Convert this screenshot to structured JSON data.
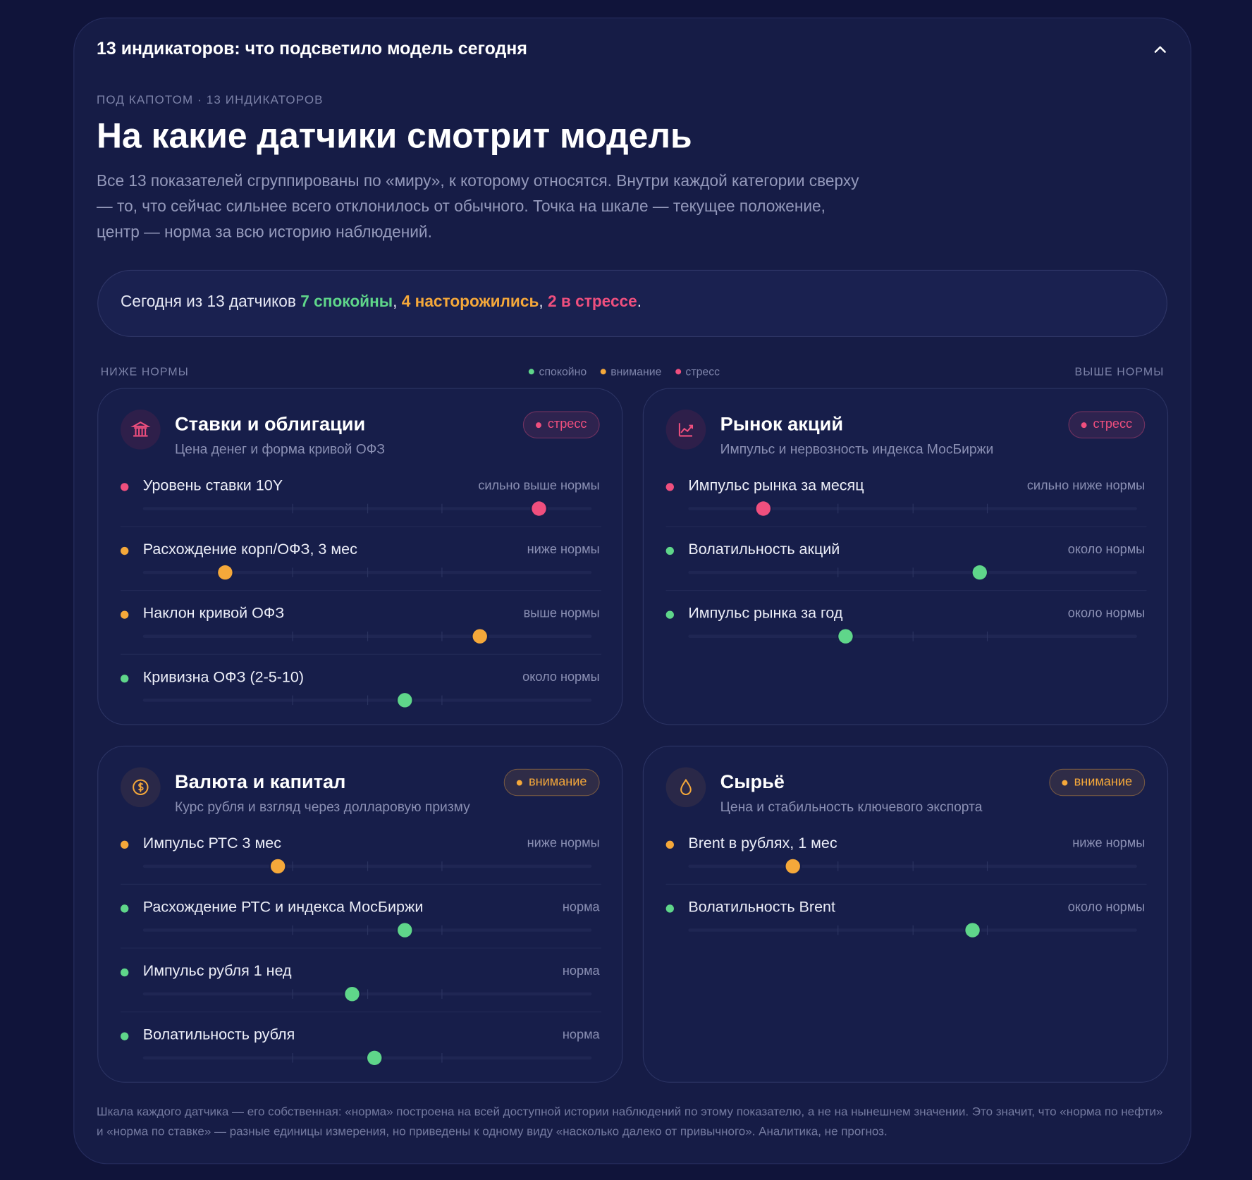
{
  "header": {
    "title": "13 индикаторов: что подсветило модель сегодня"
  },
  "eyebrow": "ПОД КАПОТОМ · 13 ИНДИКАТОРОВ",
  "heading": "На какие датчики смотрит модель",
  "description": "Все 13 показателей сгруппированы по «миру», к которому относятся. Внутри каждой категории сверху — то, что сейчас сильнее всего отклонилось от обычного. Точка на шкале — текущее положение, центр — норма за всю историю наблюдений.",
  "summary": {
    "parts": [
      {
        "text": "Сегодня из 13 датчиков"
      },
      {
        "text": "7 спокойны",
        "status": "calm"
      },
      {
        "text": ","
      },
      {
        "text": "4 насторожились",
        "status": "attention"
      },
      {
        "text": ","
      },
      {
        "text": "2 в стрессе",
        "status": "stress"
      },
      {
        "text": "."
      }
    ]
  },
  "scale_labels": {
    "low": "НИЖЕ НОРМЫ",
    "high": "ВЫШЕ НОРМЫ"
  },
  "legend": [
    {
      "status": "calm",
      "label": "спокойно"
    },
    {
      "status": "attention",
      "label": "внимание"
    },
    {
      "status": "stress",
      "label": "стресс"
    }
  ],
  "status_colors": {
    "calm": "#5fd68a",
    "attention": "#f5a83a",
    "stress": "#ef4f7e"
  },
  "scale": {
    "min": -3,
    "max": 3,
    "ticks": [
      -1,
      0,
      1
    ]
  },
  "cards": [
    {
      "title": "Ставки и облигации",
      "subtitle": "Цена денег и форма кривой ОФЗ",
      "badge": "стресс",
      "status": "stress",
      "indicators": [
        {
          "name": "Уровень ставки 10Y",
          "status": "stress",
          "state": "сильно выше нормы",
          "value": 2.3
        },
        {
          "name": "Расхождение корп/ОФЗ, 3 мес",
          "status": "attention",
          "state": "ниже нормы",
          "value": -1.9
        },
        {
          "name": "Наклон кривой ОФЗ",
          "status": "attention",
          "state": "выше нормы",
          "value": 1.5
        },
        {
          "name": "Кривизна ОФЗ (2-5-10)",
          "status": "calm",
          "state": "около нормы",
          "value": 0.5
        }
      ]
    },
    {
      "title": "Рынок акций",
      "subtitle": "Импульс и нервозность индекса МосБиржи",
      "badge": "стресс",
      "status": "stress",
      "indicators": [
        {
          "name": "Импульс рынка за месяц",
          "status": "stress",
          "state": "сильно ниже нормы",
          "value": -2.0
        },
        {
          "name": "Волатильность акций",
          "status": "calm",
          "state": "около нормы",
          "value": 0.9
        },
        {
          "name": "Импульс рынка за год",
          "status": "calm",
          "state": "около нормы",
          "value": -0.9
        }
      ]
    },
    {
      "title": "Валюта и капитал",
      "subtitle": "Курс рубля и взгляд через долларовую призму",
      "badge": "внимание",
      "status": "attention",
      "indicators": [
        {
          "name": "Импульс РТС 3 мес",
          "status": "attention",
          "state": "ниже нормы",
          "value": -1.2
        },
        {
          "name": "Расхождение РТС и индекса МосБиржи",
          "status": "calm",
          "state": "норма",
          "value": 0.5
        },
        {
          "name": "Импульс рубля 1 нед",
          "status": "calm",
          "state": "норма",
          "value": -0.2
        },
        {
          "name": "Волатильность рубля",
          "status": "calm",
          "state": "норма",
          "value": 0.1
        }
      ]
    },
    {
      "title": "Сырьё",
      "subtitle": "Цена и стабильность ключевого экспорта",
      "badge": "внимание",
      "status": "attention",
      "indicators": [
        {
          "name": "Brent в рублях, 1 мес",
          "status": "attention",
          "state": "ниже нормы",
          "value": -1.6
        },
        {
          "name": "Волатильность Brent",
          "status": "calm",
          "state": "около нормы",
          "value": 0.8
        }
      ]
    }
  ],
  "footnote": "Шкала каждого датчика — его собственная: «норма» построена на всей доступной истории наблюдений по этому показателю, а не на нынешнем значении. Это значит, что «норма по нефти» и «норма по ставке» — разные единицы измерения, но приведены к одному виду «насколько далеко от привычного». Аналитика, не прогноз."
}
